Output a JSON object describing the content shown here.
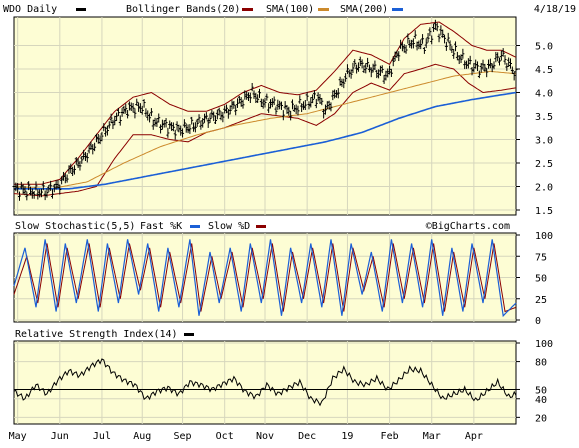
{
  "chart_data": [
    {
      "panel": "price",
      "type": "line",
      "symbol_label": "WDO Daily",
      "date_label": "4/18/19",
      "legend": [
        {
          "label": "Bollinger Bands(20)",
          "color": "#8b0000"
        },
        {
          "label": "SMA(100)",
          "color": "#cc8a2c"
        },
        {
          "label": "SMA(200)",
          "color": "#1b5fd6"
        }
      ],
      "ylim": [
        1.5,
        5.5
      ],
      "y_ticks": [
        "5.0",
        "4.5",
        "4.0",
        "3.5",
        "3.0",
        "2.5",
        "2.0",
        "1.5"
      ],
      "y_tick_values": [
        5.0,
        4.5,
        4.0,
        3.5,
        3.0,
        2.5,
        2.0,
        1.5
      ],
      "grid": true,
      "x_months": [
        "May",
        "Jun",
        "Jul",
        "Aug",
        "Sep",
        "Oct",
        "Nov",
        "Dec",
        "19",
        "Feb",
        "Mar",
        "Apr"
      ],
      "price_anchors": [
        [
          0,
          1.95
        ],
        [
          5,
          1.92
        ],
        [
          12,
          1.88
        ],
        [
          18,
          1.9
        ],
        [
          24,
          2.0
        ],
        [
          30,
          2.3
        ],
        [
          38,
          2.6
        ],
        [
          46,
          3.0
        ],
        [
          54,
          3.4
        ],
        [
          62,
          3.65
        ],
        [
          70,
          3.7
        ],
        [
          76,
          3.4
        ],
        [
          82,
          3.3
        ],
        [
          90,
          3.2
        ],
        [
          98,
          3.3
        ],
        [
          106,
          3.45
        ],
        [
          114,
          3.55
        ],
        [
          122,
          3.75
        ],
        [
          130,
          4.0
        ],
        [
          136,
          3.8
        ],
        [
          142,
          3.75
        ],
        [
          150,
          3.6
        ],
        [
          158,
          3.75
        ],
        [
          166,
          3.9
        ],
        [
          170,
          3.6
        ],
        [
          176,
          4.0
        ],
        [
          182,
          4.4
        ],
        [
          188,
          4.6
        ],
        [
          196,
          4.5
        ],
        [
          204,
          4.35
        ],
        [
          210,
          4.9
        ],
        [
          218,
          5.1
        ],
        [
          224,
          5.0
        ],
        [
          230,
          5.4
        ],
        [
          236,
          5.1
        ],
        [
          242,
          4.8
        ],
        [
          248,
          4.6
        ],
        [
          254,
          4.5
        ],
        [
          260,
          4.55
        ],
        [
          266,
          4.8
        ],
        [
          270,
          4.6
        ],
        [
          274,
          4.4
        ]
      ],
      "sma100_anchors": [
        [
          0,
          2.0
        ],
        [
          20,
          1.95
        ],
        [
          40,
          2.1
        ],
        [
          60,
          2.5
        ],
        [
          80,
          2.85
        ],
        [
          100,
          3.1
        ],
        [
          120,
          3.3
        ],
        [
          140,
          3.45
        ],
        [
          160,
          3.55
        ],
        [
          180,
          3.75
        ],
        [
          200,
          3.95
        ],
        [
          220,
          4.15
        ],
        [
          240,
          4.35
        ],
        [
          260,
          4.45
        ],
        [
          274,
          4.4
        ]
      ],
      "sma200_anchors": [
        [
          0,
          1.95
        ],
        [
          30,
          1.95
        ],
        [
          50,
          2.05
        ],
        [
          70,
          2.2
        ],
        [
          90,
          2.35
        ],
        [
          110,
          2.5
        ],
        [
          130,
          2.65
        ],
        [
          150,
          2.8
        ],
        [
          170,
          2.95
        ],
        [
          190,
          3.15
        ],
        [
          210,
          3.45
        ],
        [
          230,
          3.7
        ],
        [
          250,
          3.85
        ],
        [
          274,
          4.0
        ]
      ],
      "bb_upper_anchors": [
        [
          0,
          2.05
        ],
        [
          15,
          2.05
        ],
        [
          25,
          2.15
        ],
        [
          35,
          2.6
        ],
        [
          45,
          3.1
        ],
        [
          55,
          3.6
        ],
        [
          65,
          3.9
        ],
        [
          75,
          4.0
        ],
        [
          85,
          3.75
        ],
        [
          95,
          3.6
        ],
        [
          105,
          3.6
        ],
        [
          115,
          3.75
        ],
        [
          125,
          4.0
        ],
        [
          135,
          4.15
        ],
        [
          145,
          4.0
        ],
        [
          155,
          3.95
        ],
        [
          165,
          4.05
        ],
        [
          175,
          4.45
        ],
        [
          185,
          4.9
        ],
        [
          195,
          4.8
        ],
        [
          205,
          4.6
        ],
        [
          213,
          5.15
        ],
        [
          222,
          5.45
        ],
        [
          232,
          5.5
        ],
        [
          240,
          5.3
        ],
        [
          250,
          5.0
        ],
        [
          258,
          4.9
        ],
        [
          266,
          4.9
        ],
        [
          274,
          4.75
        ]
      ],
      "bb_lower_anchors": [
        [
          0,
          1.85
        ],
        [
          15,
          1.8
        ],
        [
          25,
          1.85
        ],
        [
          35,
          1.9
        ],
        [
          45,
          2.0
        ],
        [
          55,
          2.6
        ],
        [
          65,
          3.1
        ],
        [
          75,
          3.1
        ],
        [
          85,
          3.0
        ],
        [
          95,
          2.95
        ],
        [
          105,
          3.15
        ],
        [
          115,
          3.25
        ],
        [
          125,
          3.4
        ],
        [
          135,
          3.55
        ],
        [
          145,
          3.5
        ],
        [
          155,
          3.45
        ],
        [
          165,
          3.3
        ],
        [
          175,
          3.55
        ],
        [
          185,
          4.0
        ],
        [
          195,
          4.2
        ],
        [
          205,
          4.05
        ],
        [
          213,
          4.4
        ],
        [
          222,
          4.5
        ],
        [
          230,
          4.6
        ],
        [
          240,
          4.5
        ],
        [
          248,
          4.2
        ],
        [
          256,
          4.0
        ],
        [
          266,
          4.05
        ],
        [
          274,
          4.1
        ]
      ],
      "attribution": ""
    },
    {
      "panel": "stochastic",
      "type": "line",
      "title": "Slow Stochastic(5,5)",
      "legend": [
        {
          "label": "Fast %K",
          "color": "#1b5fd6"
        },
        {
          "label": "Slow %D",
          "color": "#8b0000"
        }
      ],
      "ylim": [
        0,
        100
      ],
      "y_ticks": [
        "100",
        "75",
        "50",
        "25",
        "0"
      ],
      "y_tick_values": [
        100,
        75,
        50,
        25,
        0
      ],
      "attribution": "©BigCharts.com",
      "fast_k_peaks": [
        [
          0,
          40
        ],
        [
          6,
          85
        ],
        [
          12,
          15
        ],
        [
          17,
          95
        ],
        [
          23,
          10
        ],
        [
          28,
          90
        ],
        [
          34,
          20
        ],
        [
          40,
          95
        ],
        [
          46,
          10
        ],
        [
          51,
          90
        ],
        [
          57,
          20
        ],
        [
          62,
          95
        ],
        [
          68,
          30
        ],
        [
          73,
          90
        ],
        [
          79,
          10
        ],
        [
          84,
          85
        ],
        [
          90,
          15
        ],
        [
          96,
          95
        ],
        [
          101,
          5
        ],
        [
          107,
          80
        ],
        [
          112,
          20
        ],
        [
          118,
          85
        ],
        [
          124,
          10
        ],
        [
          129,
          90
        ],
        [
          135,
          20
        ],
        [
          140,
          95
        ],
        [
          146,
          5
        ],
        [
          151,
          85
        ],
        [
          157,
          20
        ],
        [
          162,
          90
        ],
        [
          168,
          15
        ],
        [
          173,
          95
        ],
        [
          179,
          5
        ],
        [
          184,
          90
        ],
        [
          190,
          30
        ],
        [
          195,
          80
        ],
        [
          201,
          10
        ],
        [
          206,
          95
        ],
        [
          212,
          20
        ],
        [
          217,
          90
        ],
        [
          223,
          15
        ],
        [
          228,
          95
        ],
        [
          234,
          5
        ],
        [
          239,
          85
        ],
        [
          245,
          10
        ],
        [
          250,
          90
        ],
        [
          256,
          20
        ],
        [
          261,
          95
        ],
        [
          267,
          5
        ],
        [
          274,
          20
        ]
      ],
      "slow_d_peaks": [
        [
          0,
          30
        ],
        [
          7,
          75
        ],
        [
          13,
          20
        ],
        [
          18,
          90
        ],
        [
          24,
          15
        ],
        [
          29,
          85
        ],
        [
          35,
          25
        ],
        [
          41,
          90
        ],
        [
          47,
          15
        ],
        [
          52,
          85
        ],
        [
          58,
          25
        ],
        [
          63,
          90
        ],
        [
          69,
          35
        ],
        [
          74,
          85
        ],
        [
          80,
          15
        ],
        [
          85,
          80
        ],
        [
          91,
          20
        ],
        [
          97,
          90
        ],
        [
          102,
          10
        ],
        [
          108,
          75
        ],
        [
          113,
          25
        ],
        [
          119,
          80
        ],
        [
          125,
          15
        ],
        [
          130,
          85
        ],
        [
          136,
          25
        ],
        [
          141,
          90
        ],
        [
          147,
          10
        ],
        [
          152,
          80
        ],
        [
          158,
          25
        ],
        [
          163,
          85
        ],
        [
          169,
          20
        ],
        [
          174,
          90
        ],
        [
          180,
          10
        ],
        [
          185,
          85
        ],
        [
          191,
          35
        ],
        [
          196,
          75
        ],
        [
          202,
          15
        ],
        [
          207,
          90
        ],
        [
          213,
          25
        ],
        [
          218,
          85
        ],
        [
          224,
          20
        ],
        [
          229,
          90
        ],
        [
          235,
          10
        ],
        [
          240,
          80
        ],
        [
          246,
          15
        ],
        [
          251,
          85
        ],
        [
          257,
          25
        ],
        [
          262,
          90
        ],
        [
          268,
          10
        ],
        [
          274,
          15
        ]
      ]
    },
    {
      "panel": "rsi",
      "type": "line",
      "title": "Relative Strength Index(14)",
      "legend_color": "#000000",
      "ylim": [
        15,
        100
      ],
      "y_ticks": [
        "100",
        "80",
        "50",
        "40",
        "20"
      ],
      "y_tick_values": [
        100,
        80,
        50,
        40,
        20
      ],
      "reference_line": 50,
      "rsi_anchors": [
        [
          0,
          48
        ],
        [
          6,
          40
        ],
        [
          12,
          55
        ],
        [
          18,
          45
        ],
        [
          24,
          60
        ],
        [
          30,
          70
        ],
        [
          36,
          65
        ],
        [
          42,
          75
        ],
        [
          48,
          82
        ],
        [
          54,
          68
        ],
        [
          60,
          60
        ],
        [
          66,
          55
        ],
        [
          72,
          40
        ],
        [
          78,
          48
        ],
        [
          84,
          52
        ],
        [
          90,
          45
        ],
        [
          96,
          58
        ],
        [
          102,
          55
        ],
        [
          108,
          50
        ],
        [
          114,
          56
        ],
        [
          120,
          62
        ],
        [
          126,
          48
        ],
        [
          132,
          42
        ],
        [
          138,
          55
        ],
        [
          144,
          45
        ],
        [
          150,
          52
        ],
        [
          156,
          58
        ],
        [
          162,
          40
        ],
        [
          168,
          35
        ],
        [
          174,
          62
        ],
        [
          180,
          72
        ],
        [
          186,
          58
        ],
        [
          192,
          55
        ],
        [
          198,
          62
        ],
        [
          204,
          50
        ],
        [
          210,
          60
        ],
        [
          216,
          72
        ],
        [
          222,
          70
        ],
        [
          228,
          55
        ],
        [
          234,
          40
        ],
        [
          240,
          45
        ],
        [
          246,
          50
        ],
        [
          252,
          38
        ],
        [
          258,
          48
        ],
        [
          264,
          58
        ],
        [
          270,
          42
        ],
        [
          274,
          45
        ]
      ]
    }
  ]
}
